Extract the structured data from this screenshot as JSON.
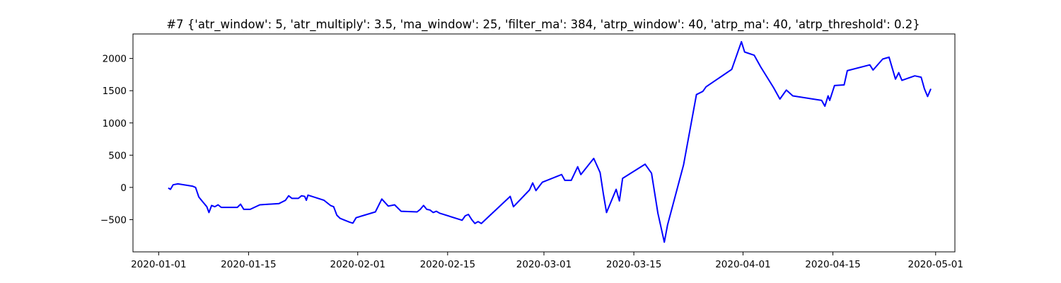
{
  "chart_data": {
    "type": "line",
    "title": "#7 {'atr_window': 5, 'atr_multiply': 3.5, 'ma_window': 25, 'filter_ma': 384, 'atrp_window': 40, 'atrp_ma': 40, 'atrp_threshold': 0.2}",
    "xlabel": "",
    "ylabel": "",
    "x_axis_type": "date",
    "xlim": [
      "2019-12-28",
      "2020-05-04"
    ],
    "ylim": [
      -1000,
      2380
    ],
    "grid": false,
    "x_ticks": [
      {
        "date": "2020-01-01",
        "label": "2020-01-01"
      },
      {
        "date": "2020-01-15",
        "label": "2020-01-15"
      },
      {
        "date": "2020-02-01",
        "label": "2020-02-01"
      },
      {
        "date": "2020-02-15",
        "label": "2020-02-15"
      },
      {
        "date": "2020-03-01",
        "label": "2020-03-01"
      },
      {
        "date": "2020-03-15",
        "label": "2020-03-15"
      },
      {
        "date": "2020-04-01",
        "label": "2020-04-01"
      },
      {
        "date": "2020-04-15",
        "label": "2020-04-15"
      },
      {
        "date": "2020-05-01",
        "label": "2020-05-01"
      }
    ],
    "y_ticks": [
      {
        "value": -500,
        "label": "−500"
      },
      {
        "value": 0,
        "label": "0"
      },
      {
        "value": 500,
        "label": "500"
      },
      {
        "value": 1000,
        "label": "1000"
      },
      {
        "value": 1500,
        "label": "1500"
      },
      {
        "value": 2000,
        "label": "2000"
      }
    ],
    "series": [
      {
        "color": "#0000ff",
        "points": [
          [
            "2020-01-02 12:00",
            -10
          ],
          [
            "2020-01-02 20:00",
            -30
          ],
          [
            "2020-01-03 06:00",
            40
          ],
          [
            "2020-01-04 00:00",
            55
          ],
          [
            "2020-01-06 06:00",
            20
          ],
          [
            "2020-01-06 18:00",
            0
          ],
          [
            "2020-01-07 06:00",
            -150
          ],
          [
            "2020-01-07 20:00",
            -220
          ],
          [
            "2020-01-08 12:00",
            -300
          ],
          [
            "2020-01-08 20:00",
            -390
          ],
          [
            "2020-01-09 06:00",
            -280
          ],
          [
            "2020-01-09 18:00",
            -300
          ],
          [
            "2020-01-10 06:00",
            -270
          ],
          [
            "2020-01-10 18:00",
            -310
          ],
          [
            "2020-01-13 06:00",
            -310
          ],
          [
            "2020-01-13 18:00",
            -260
          ],
          [
            "2020-01-14 06:00",
            -340
          ],
          [
            "2020-01-15 06:00",
            -340
          ],
          [
            "2020-01-16 18:00",
            -270
          ],
          [
            "2020-01-19 18:00",
            -250
          ],
          [
            "2020-01-20 18:00",
            -200
          ],
          [
            "2020-01-21 06:00",
            -130
          ],
          [
            "2020-01-21 18:00",
            -170
          ],
          [
            "2020-01-22 18:00",
            -170
          ],
          [
            "2020-01-23 06:00",
            -130
          ],
          [
            "2020-01-23 18:00",
            -140
          ],
          [
            "2020-01-24 00:00",
            -200
          ],
          [
            "2020-01-24 06:00",
            -120
          ],
          [
            "2020-01-26 18:00",
            -200
          ],
          [
            "2020-01-27 18:00",
            -280
          ],
          [
            "2020-01-28 06:00",
            -300
          ],
          [
            "2020-01-28 18:00",
            -430
          ],
          [
            "2020-01-29 06:00",
            -480
          ],
          [
            "2020-01-29 18:00",
            -500
          ],
          [
            "2020-01-30 18:00",
            -540
          ],
          [
            "2020-01-31 06:00",
            -555
          ],
          [
            "2020-01-31 18:00",
            -470
          ],
          [
            "2020-02-03 18:00",
            -380
          ],
          [
            "2020-02-04 18:00",
            -180
          ],
          [
            "2020-02-05 18:00",
            -290
          ],
          [
            "2020-02-06 18:00",
            -270
          ],
          [
            "2020-02-07 18:00",
            -370
          ],
          [
            "2020-02-10 06:00",
            -380
          ],
          [
            "2020-02-10 18:00",
            -340
          ],
          [
            "2020-02-11 06:00",
            -280
          ],
          [
            "2020-02-11 18:00",
            -340
          ],
          [
            "2020-02-12 06:00",
            -350
          ],
          [
            "2020-02-12 18:00",
            -390
          ],
          [
            "2020-02-13 06:00",
            -370
          ],
          [
            "2020-02-13 18:00",
            -400
          ],
          [
            "2020-02-17 06:00",
            -510
          ],
          [
            "2020-02-17 18:00",
            -440
          ],
          [
            "2020-02-18 06:00",
            -420
          ],
          [
            "2020-02-18 18:00",
            -500
          ],
          [
            "2020-02-19 06:00",
            -560
          ],
          [
            "2020-02-19 18:00",
            -530
          ],
          [
            "2020-02-20 06:00",
            -560
          ],
          [
            "2020-02-24 18:00",
            -140
          ],
          [
            "2020-02-25 06:00",
            -300
          ],
          [
            "2020-02-27 18:00",
            -40
          ],
          [
            "2020-02-28 06:00",
            70
          ],
          [
            "2020-02-28 18:00",
            -50
          ],
          [
            "2020-02-29 18:00",
            80
          ],
          [
            "2020-03-03 18:00",
            200
          ],
          [
            "2020-03-04 06:00",
            110
          ],
          [
            "2020-03-05 06:00",
            110
          ],
          [
            "2020-03-06 06:00",
            320
          ],
          [
            "2020-03-06 18:00",
            200
          ],
          [
            "2020-03-08 18:00",
            450
          ],
          [
            "2020-03-09 18:00",
            230
          ],
          [
            "2020-03-10 06:00",
            -100
          ],
          [
            "2020-03-10 18:00",
            -390
          ],
          [
            "2020-03-12 06:00",
            -30
          ],
          [
            "2020-03-12 18:00",
            -210
          ],
          [
            "2020-03-13 06:00",
            140
          ],
          [
            "2020-03-16 18:00",
            360
          ],
          [
            "2020-03-17 18:00",
            220
          ],
          [
            "2020-03-18 18:00",
            -400
          ],
          [
            "2020-03-19 18:00",
            -850
          ],
          [
            "2020-03-20 06:00",
            -580
          ],
          [
            "2020-03-22 18:00",
            350
          ],
          [
            "2020-03-24 18:00",
            1440
          ],
          [
            "2020-03-25 18:00",
            1490
          ],
          [
            "2020-03-26 06:00",
            1560
          ],
          [
            "2020-03-30 06:00",
            1830
          ],
          [
            "2020-03-31 18:00",
            2260
          ],
          [
            "2020-04-01 06:00",
            2100
          ],
          [
            "2020-04-02 18:00",
            2050
          ],
          [
            "2020-04-03 18:00",
            1870
          ],
          [
            "2020-04-05 18:00",
            1550
          ],
          [
            "2020-04-06 18:00",
            1370
          ],
          [
            "2020-04-07 18:00",
            1510
          ],
          [
            "2020-04-08 18:00",
            1420
          ],
          [
            "2020-04-13 06:00",
            1350
          ],
          [
            "2020-04-13 18:00",
            1260
          ],
          [
            "2020-04-14 06:00",
            1420
          ],
          [
            "2020-04-14 12:00",
            1350
          ],
          [
            "2020-04-15 06:00",
            1580
          ],
          [
            "2020-04-16 18:00",
            1590
          ],
          [
            "2020-04-17 06:00",
            1810
          ],
          [
            "2020-04-20 18:00",
            1900
          ],
          [
            "2020-04-21 06:00",
            1820
          ],
          [
            "2020-04-22 18:00",
            1990
          ],
          [
            "2020-04-23 18:00",
            2020
          ],
          [
            "2020-04-24 18:00",
            1680
          ],
          [
            "2020-04-25 06:00",
            1780
          ],
          [
            "2020-04-25 18:00",
            1660
          ],
          [
            "2020-04-27 18:00",
            1730
          ],
          [
            "2020-04-28 18:00",
            1710
          ],
          [
            "2020-04-29 06:00",
            1530
          ],
          [
            "2020-04-29 18:00",
            1410
          ],
          [
            "2020-04-30 06:00",
            1530
          ]
        ]
      }
    ]
  }
}
